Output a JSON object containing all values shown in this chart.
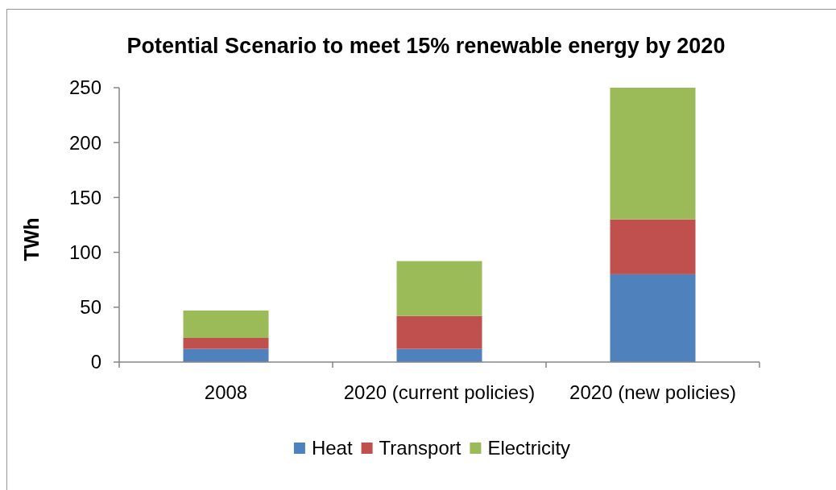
{
  "chart_data": {
    "type": "bar",
    "stacked": true,
    "title": "Potential Scenario to meet 15% renewable energy by 2020",
    "ylabel": "TWh",
    "categories": [
      "2008",
      "2020 (current policies)",
      "2020 (new policies)"
    ],
    "series": [
      {
        "name": "Heat",
        "color": "#4f81bd",
        "values": [
          12,
          12,
          80
        ]
      },
      {
        "name": "Transport",
        "color": "#c0504d",
        "values": [
          10,
          30,
          50
        ]
      },
      {
        "name": "Electricity",
        "color": "#9bbb59",
        "values": [
          25,
          50,
          120
        ]
      }
    ],
    "ylim": [
      0,
      250
    ],
    "yticks": [
      0,
      50,
      100,
      150,
      200,
      250
    ],
    "legend": "bottom"
  }
}
